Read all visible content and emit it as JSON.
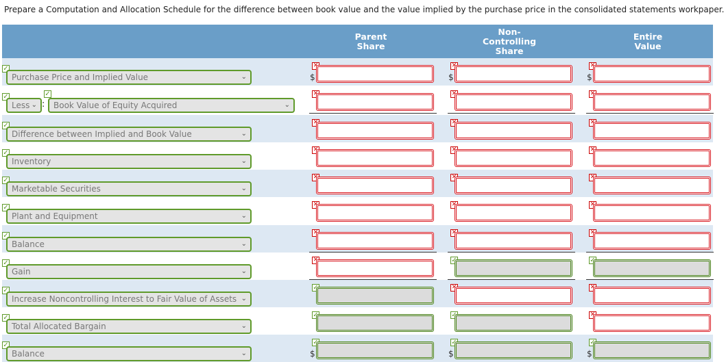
{
  "instruction": "Prepare a Computation and Allocation Schedule for the difference between book value and the value implied by the purchase price in the consolidated statements workpaper.",
  "headers": {
    "parent": "Parent\nShare",
    "noncontrolling": "Non-\nControlling\nShare",
    "entire": "Entire\nValue"
  },
  "currency_symbol": "$",
  "caret_glyph": "⌄",
  "less_select": {
    "value": "Less",
    "caret": "⌄"
  },
  "colon": ":",
  "rows": [
    {
      "label": "Purchase Price and Implied Value",
      "parent": "",
      "nci": "",
      "entire": ""
    },
    {
      "label": "Book Value of Equity Acquired",
      "parent": "",
      "nci": "",
      "entire": ""
    },
    {
      "label": "Difference between Implied and Book Value",
      "parent": "",
      "nci": "",
      "entire": ""
    },
    {
      "label": "Inventory",
      "parent": "",
      "nci": "",
      "entire": ""
    },
    {
      "label": "Marketable Securities",
      "parent": "",
      "nci": "",
      "entire": ""
    },
    {
      "label": "Plant and Equipment",
      "parent": "",
      "nci": "",
      "entire": ""
    },
    {
      "label": "Balance",
      "parent": "",
      "nci": "",
      "entire": ""
    },
    {
      "label": "Gain",
      "parent": "",
      "nci": "",
      "entire": ""
    },
    {
      "label": "Increase Noncontrolling Interest to Fair Value of Assets",
      "parent": "",
      "nci": "",
      "entire": ""
    },
    {
      "label": "Total Allocated Bargain",
      "parent": "",
      "nci": "",
      "entire": ""
    },
    {
      "label": "Balance",
      "parent": "",
      "nci": "",
      "entire": ""
    }
  ],
  "colors": {
    "header_bg": "#6a9ec8",
    "alt_row": "#dde8f3",
    "incorrect": "#d8161e",
    "correct": "#4f8a1e"
  }
}
